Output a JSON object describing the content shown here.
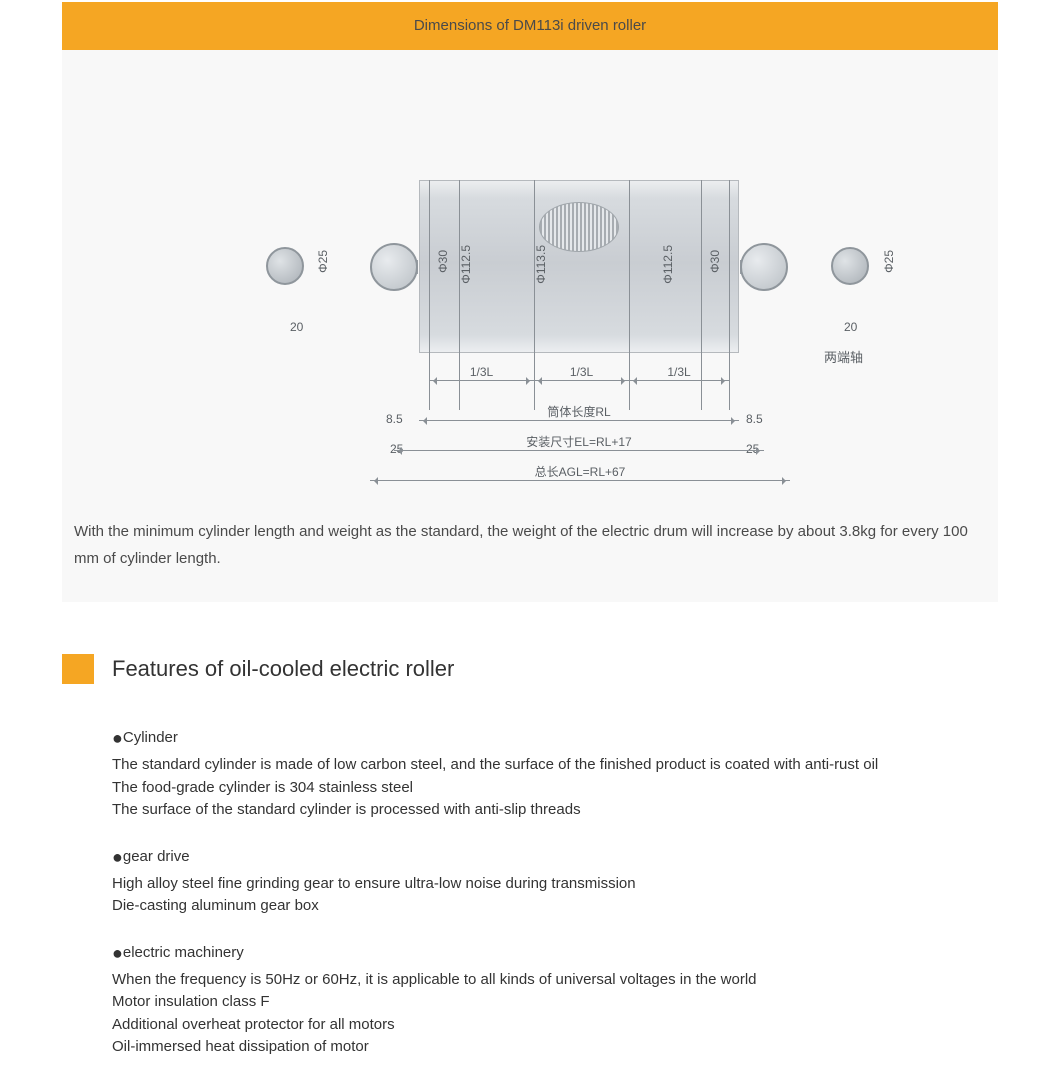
{
  "header": {
    "title": "Dimensions of DM113i driven roller",
    "bg": "#f5a623"
  },
  "panel_bg": "#f8f8f8",
  "diagram": {
    "diameters": {
      "shaft_end": "Φ25",
      "inner_cap": "Φ30",
      "end_face": "Φ112.5",
      "body": "Φ113.5"
    },
    "lengths": {
      "shaft_stub": "20",
      "cap_gap": "8.5",
      "mount_gap": "25",
      "third_L": "1/3L",
      "body_length": "筒体长度RL",
      "install_dim": "安装尺寸EL=RL+17",
      "overall": "总长AGL=RL+67"
    },
    "side_note": "两端轴",
    "colors": {
      "line": "#8a9096",
      "cyl_light": "#eceef0",
      "cyl_dark": "#c9cdd2",
      "text": "#5a5f64"
    }
  },
  "caption": "With the minimum cylinder length and weight as the standard, the weight of the electric drum will increase by about 3.8kg for every 100 mm of cylinder length.",
  "features_section": {
    "title": "Features of oil-cooled electric roller",
    "groups": [
      {
        "heading": "Cylinder",
        "lines": [
          "The standard cylinder is made of low carbon steel, and the surface of the finished product is coated with anti-rust oil",
          "The food-grade cylinder is 304 stainless steel",
          "The surface of the standard cylinder is processed with anti-slip threads"
        ]
      },
      {
        "heading": "gear drive",
        "lines": [
          "High alloy steel fine grinding gear to ensure ultra-low noise during transmission",
          "Die-casting aluminum gear box"
        ]
      },
      {
        "heading": "electric machinery",
        "lines": [
          "When the frequency is 50Hz or 60Hz, it is applicable to all kinds of universal voltages in the world",
          "Motor insulation class F",
          "Additional overheat protector for all motors",
          "Oil-immersed heat dissipation of motor"
        ]
      }
    ]
  }
}
